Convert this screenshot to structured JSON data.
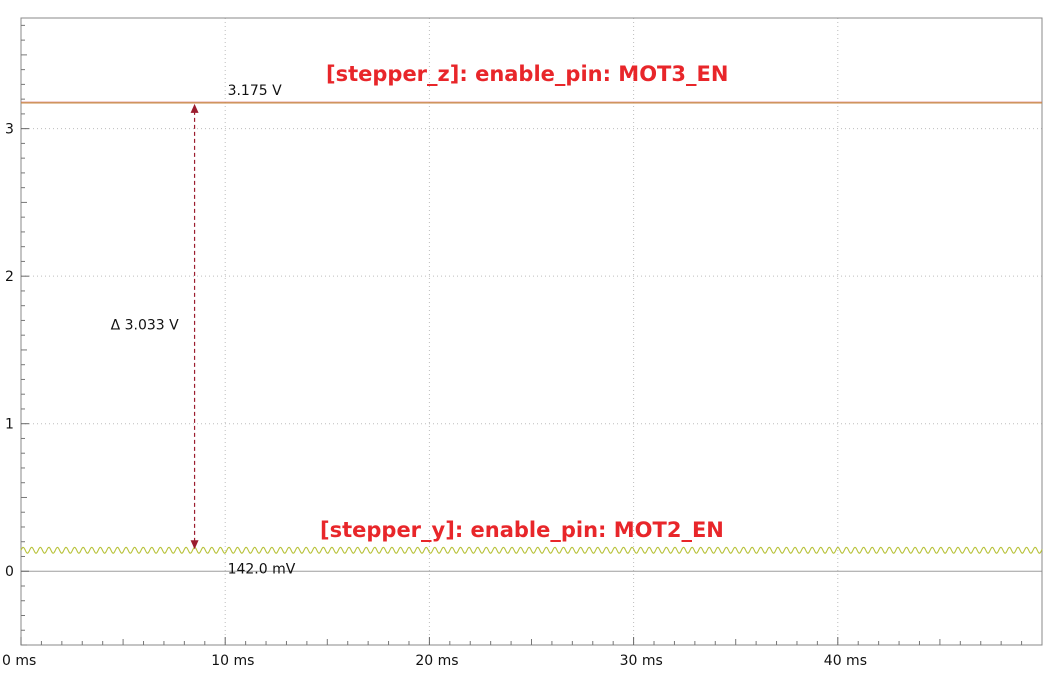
{
  "chart_data": {
    "type": "line",
    "xlabel": "",
    "ylabel": "",
    "xlim": [
      0,
      50
    ],
    "ylim": [
      -0.5,
      3.75
    ],
    "x_ticks": [
      {
        "value": 0,
        "label": "0 ms"
      },
      {
        "value": 10,
        "label": "10 ms"
      },
      {
        "value": 20,
        "label": "20 ms"
      },
      {
        "value": 30,
        "label": "30 ms"
      },
      {
        "value": 40,
        "label": "40 ms"
      }
    ],
    "y_ticks": [
      {
        "value": 0,
        "label": "0"
      },
      {
        "value": 1,
        "label": "1"
      },
      {
        "value": 2,
        "label": "2"
      },
      {
        "value": 3,
        "label": "3"
      }
    ],
    "grid": true,
    "series": [
      {
        "name": "[stepper_z]:  enable_pin: MOT3_EN",
        "color": "#c98a4a",
        "x": [
          0,
          50
        ],
        "y": [
          3.175,
          3.175
        ]
      },
      {
        "name": "[stepper_y]:  enable_pin: MOT2_EN",
        "color": "#b8c23a",
        "x": [
          0,
          50
        ],
        "y": [
          0.142,
          0.142
        ],
        "ripple_amplitude": 0.02,
        "ripple_period_ms": 0.42
      }
    ],
    "measurement": {
      "x": 8.5,
      "upper_value": 3.175,
      "lower_value": 0.142,
      "upper_label": "3.175 V",
      "lower_label": "142.0 mV",
      "delta_label": "Δ 3.033 V",
      "color": "#9b1c2e"
    }
  },
  "annotations": {
    "z_label": "[stepper_z]:  enable_pin: MOT3_EN",
    "y_label": "[stepper_y]:  enable_pin: MOT2_EN",
    "color": "#e8262a"
  }
}
